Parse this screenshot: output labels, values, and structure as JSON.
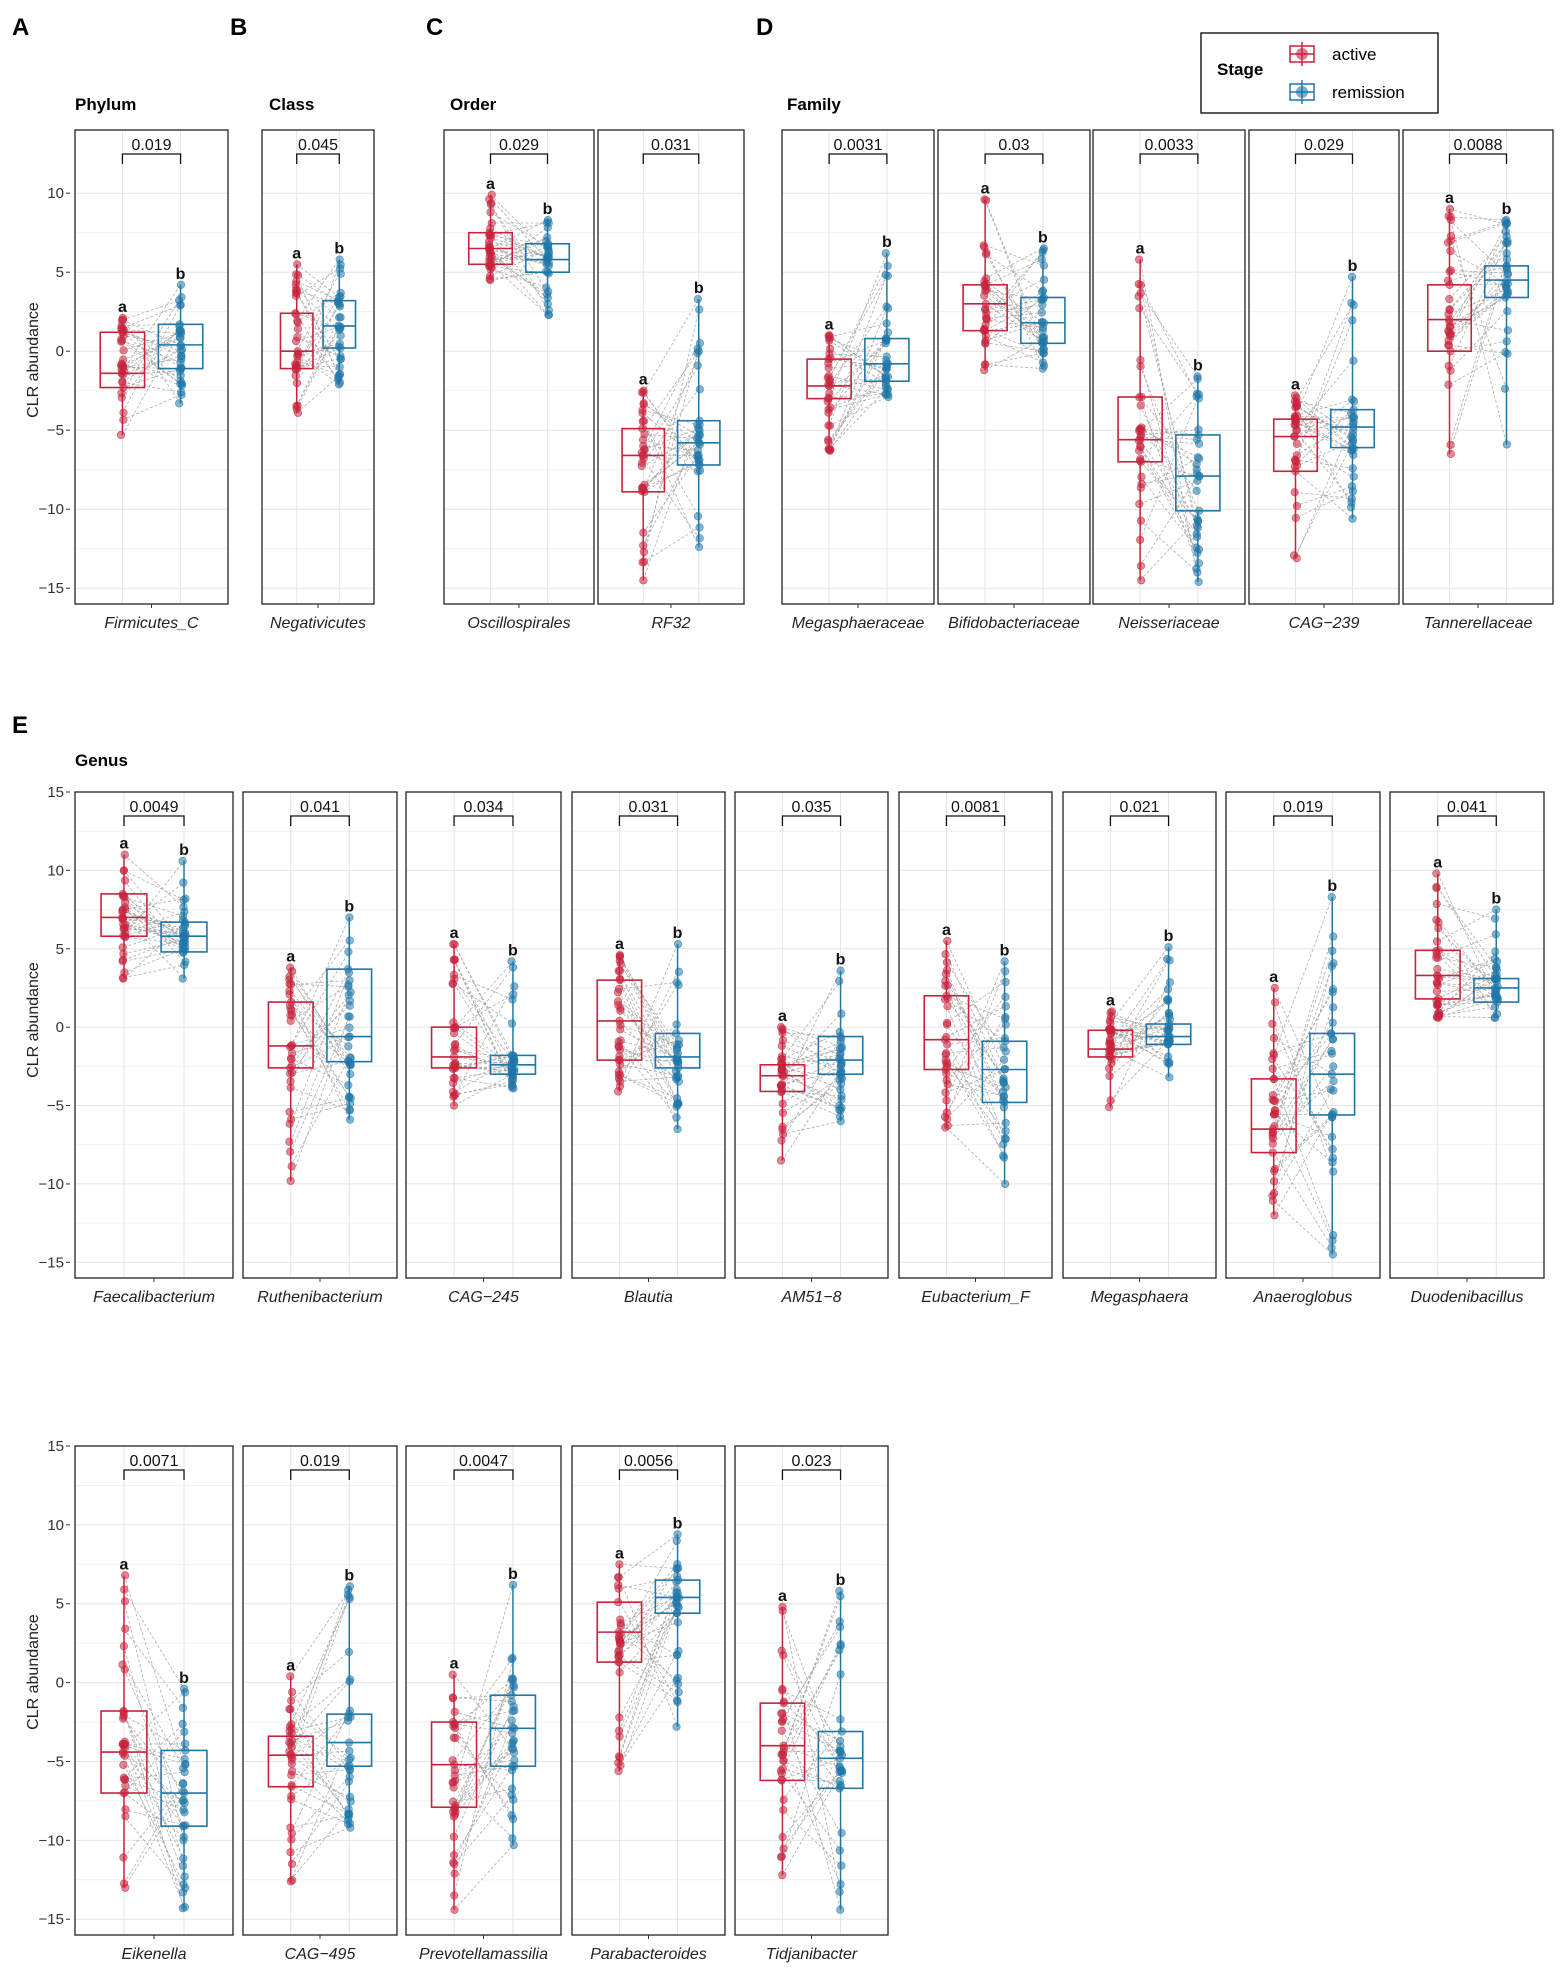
{
  "colors": {
    "active": "#c8223c",
    "remission": "#1f77a8",
    "grid": "#e4e4e4",
    "pair_line": "#9a9a9a"
  },
  "legend": {
    "title": "Stage",
    "items": [
      "active",
      "remission"
    ]
  },
  "y_axis_label": "CLR abundance",
  "letters": {
    "active": "a",
    "remission": "b"
  },
  "panels": [
    {
      "letter": "A",
      "title": "Phylum"
    },
    {
      "letter": "B",
      "title": "Class"
    },
    {
      "letter": "C",
      "title": "Order"
    },
    {
      "letter": "D",
      "title": "Family"
    },
    {
      "letter": "E",
      "title": "Genus"
    }
  ],
  "chart_data": [
    {
      "type": "box",
      "title": "Phylum / Class / Order / Family",
      "ylabel": "CLR abundance",
      "ylim": [
        -16,
        14
      ],
      "yticks": [
        10,
        5,
        0,
        -5,
        -10,
        -15
      ],
      "taxa": [
        {
          "name": "Firmicutes_C",
          "p": "0.019",
          "active": {
            "min": -5.3,
            "q1": -2.3,
            "median": -1.4,
            "q3": 1.2,
            "max": 2.1
          },
          "remission": {
            "min": -3.3,
            "q1": -1.1,
            "median": 0.4,
            "q3": 1.7,
            "max": 4.2
          }
        },
        {
          "name": "Negativicutes",
          "p": "0.045",
          "active": {
            "min": -3.9,
            "q1": -1.1,
            "median": 0.0,
            "q3": 2.4,
            "max": 5.5
          },
          "remission": {
            "min": -2.1,
            "q1": 0.2,
            "median": 1.6,
            "q3": 3.2,
            "max": 5.8
          }
        },
        {
          "name": "Oscillospirales",
          "p": "0.029",
          "active": {
            "min": 4.5,
            "q1": 5.5,
            "median": 6.5,
            "q3": 7.5,
            "max": 9.9
          },
          "remission": {
            "min": 2.3,
            "q1": 5.0,
            "median": 5.8,
            "q3": 6.8,
            "max": 8.3
          }
        },
        {
          "name": "RF32",
          "p": "0.031",
          "active": {
            "min": -14.5,
            "q1": -8.9,
            "median": -6.6,
            "q3": -4.9,
            "max": -2.5
          },
          "remission": {
            "min": -12.4,
            "q1": -7.2,
            "median": -5.8,
            "q3": -4.4,
            "max": 3.3
          }
        },
        {
          "name": "Megasphaeraceae",
          "p": "0.0031",
          "active": {
            "min": -6.3,
            "q1": -3.0,
            "median": -2.2,
            "q3": -0.5,
            "max": 1.0
          },
          "remission": {
            "min": -2.9,
            "q1": -1.9,
            "median": -0.8,
            "q3": 0.8,
            "max": 6.2
          }
        },
        {
          "name": "Bifidobacteriaceae",
          "p": "0.03",
          "active": {
            "min": -1.2,
            "q1": 1.3,
            "median": 3.0,
            "q3": 4.2,
            "max": 9.6
          },
          "remission": {
            "min": -1.1,
            "q1": 0.5,
            "median": 1.8,
            "q3": 3.4,
            "max": 6.5
          }
        },
        {
          "name": "Neisseriaceae",
          "p": "0.0033",
          "active": {
            "min": -14.5,
            "q1": -7.0,
            "median": -5.6,
            "q3": -2.9,
            "max": 5.8
          },
          "remission": {
            "min": -14.6,
            "q1": -10.1,
            "median": -7.9,
            "q3": -5.3,
            "max": -1.6
          }
        },
        {
          "name": "CAG-239",
          "p": "0.029",
          "active": {
            "min": -13.1,
            "q1": -7.6,
            "median": -5.4,
            "q3": -4.3,
            "max": -2.8
          },
          "remission": {
            "min": -10.6,
            "q1": -6.1,
            "median": -4.8,
            "q3": -3.7,
            "max": 4.7
          }
        },
        {
          "name": "Tannerellaceae",
          "p": "0.0088",
          "active": {
            "min": -6.5,
            "q1": 0.0,
            "median": 2.0,
            "q3": 4.2,
            "max": 9.0
          },
          "remission": {
            "min": -5.9,
            "q1": 3.4,
            "median": 4.5,
            "q3": 5.4,
            "max": 8.3
          }
        }
      ]
    },
    {
      "type": "box",
      "title": "Genus",
      "ylabel": "CLR abundance",
      "ylim": [
        -16,
        15
      ],
      "yticks": [
        15,
        10,
        5,
        0,
        -5,
        -10,
        -15
      ],
      "taxa": [
        {
          "name": "Faecalibacterium",
          "p": "0.0049",
          "active": {
            "min": 3.1,
            "q1": 5.8,
            "median": 7.0,
            "q3": 8.5,
            "max": 11.0
          },
          "remission": {
            "min": 3.1,
            "q1": 4.8,
            "median": 5.8,
            "q3": 6.7,
            "max": 10.6
          }
        },
        {
          "name": "Ruthenibacterium",
          "p": "0.041",
          "active": {
            "min": -9.8,
            "q1": -2.6,
            "median": -1.2,
            "q3": 1.6,
            "max": 3.8
          },
          "remission": {
            "min": -5.9,
            "q1": -2.2,
            "median": -0.6,
            "q3": 3.7,
            "max": 7.0
          }
        },
        {
          "name": "CAG-245",
          "p": "0.034",
          "active": {
            "min": -5.0,
            "q1": -2.6,
            "median": -1.9,
            "q3": 0.0,
            "max": 5.3
          },
          "remission": {
            "min": -3.9,
            "q1": -3.0,
            "median": -2.4,
            "q3": -1.8,
            "max": 4.2
          }
        },
        {
          "name": "Blautia",
          "p": "0.031",
          "active": {
            "min": -4.1,
            "q1": -2.1,
            "median": 0.4,
            "q3": 3.0,
            "max": 4.6
          },
          "remission": {
            "min": -6.5,
            "q1": -2.6,
            "median": -1.9,
            "q3": -0.4,
            "max": 5.3
          }
        },
        {
          "name": "AM51-8",
          "p": "0.035",
          "active": {
            "min": -8.5,
            "q1": -4.1,
            "median": -3.1,
            "q3": -2.4,
            "max": 0.0
          },
          "remission": {
            "min": -6.0,
            "q1": -3.0,
            "median": -2.1,
            "q3": -0.6,
            "max": 3.6
          }
        },
        {
          "name": "Eubacterium_F",
          "p": "0.0081",
          "active": {
            "min": -6.4,
            "q1": -2.7,
            "median": -0.8,
            "q3": 2.0,
            "max": 5.5
          },
          "remission": {
            "min": -10.0,
            "q1": -4.8,
            "median": -2.7,
            "q3": -0.9,
            "max": 4.2
          }
        },
        {
          "name": "Megasphaera",
          "p": "0.021",
          "active": {
            "min": -5.1,
            "q1": -1.9,
            "median": -1.4,
            "q3": -0.2,
            "max": 1.0
          },
          "remission": {
            "min": -3.2,
            "q1": -1.1,
            "median": -0.6,
            "q3": 0.2,
            "max": 5.1
          }
        },
        {
          "name": "Anaeroglobus",
          "p": "0.019",
          "active": {
            "min": -12.0,
            "q1": -8.0,
            "median": -6.5,
            "q3": -3.3,
            "max": 2.5
          },
          "remission": {
            "min": -14.5,
            "q1": -5.6,
            "median": -3.0,
            "q3": -0.4,
            "max": 8.3
          }
        },
        {
          "name": "Duodenibacillus",
          "p": "0.041",
          "active": {
            "min": 0.6,
            "q1": 1.8,
            "median": 3.3,
            "q3": 4.9,
            "max": 9.8
          },
          "remission": {
            "min": 0.6,
            "q1": 1.6,
            "median": 2.5,
            "q3": 3.1,
            "max": 7.5
          }
        },
        {
          "name": "Eikenella",
          "p": "0.0071",
          "active": {
            "min": -13.0,
            "q1": -7.0,
            "median": -4.4,
            "q3": -1.8,
            "max": 6.8
          },
          "remission": {
            "min": -14.3,
            "q1": -9.1,
            "median": -7.0,
            "q3": -4.3,
            "max": -0.4
          }
        },
        {
          "name": "CAG-495",
          "p": "0.019",
          "active": {
            "min": -12.6,
            "q1": -6.6,
            "median": -4.6,
            "q3": -3.4,
            "max": 0.4
          },
          "remission": {
            "min": -9.2,
            "q1": -5.3,
            "median": -3.8,
            "q3": -2.0,
            "max": 6.1
          }
        },
        {
          "name": "Prevotellamassilia",
          "p": "0.0047",
          "active": {
            "min": -14.4,
            "q1": -7.9,
            "median": -5.2,
            "q3": -2.5,
            "max": 0.5
          },
          "remission": {
            "min": -10.3,
            "q1": -5.3,
            "median": -2.9,
            "q3": -0.8,
            "max": 6.2
          }
        },
        {
          "name": "Parabacteroides",
          "p": "0.0056",
          "active": {
            "min": -5.6,
            "q1": 1.3,
            "median": 3.2,
            "q3": 5.1,
            "max": 7.5
          },
          "remission": {
            "min": -2.8,
            "q1": 4.4,
            "median": 5.4,
            "q3": 6.5,
            "max": 9.4
          }
        },
        {
          "name": "Tidjanibacter",
          "p": "0.023",
          "active": {
            "min": -12.2,
            "q1": -6.2,
            "median": -4.0,
            "q3": -1.3,
            "max": 4.8
          },
          "remission": {
            "min": -14.4,
            "q1": -6.7,
            "median": -4.8,
            "q3": -3.1,
            "max": 5.8
          }
        }
      ]
    }
  ]
}
